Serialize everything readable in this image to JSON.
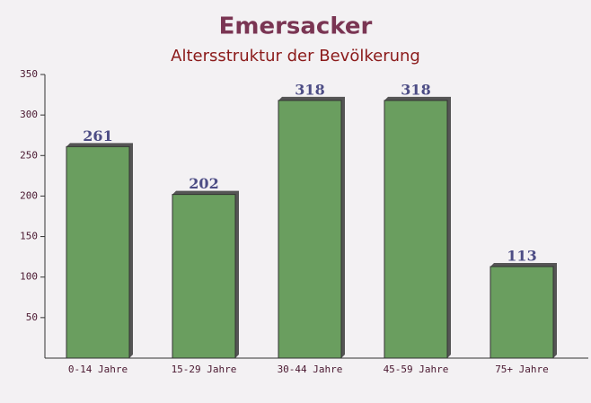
{
  "chart_data": {
    "type": "bar",
    "title": "Emersacker",
    "subtitle": "Altersstruktur der Bevölkerung",
    "categories": [
      "0-14 Jahre",
      "15-29 Jahre",
      "30-44 Jahre",
      "45-59 Jahre",
      "75+ Jahre"
    ],
    "values": [
      261,
      202,
      318,
      318,
      113
    ],
    "color": "#6a9e5f",
    "ylim": [
      0,
      350
    ],
    "yticks": [
      50,
      100,
      150,
      200,
      250,
      300,
      350
    ]
  }
}
